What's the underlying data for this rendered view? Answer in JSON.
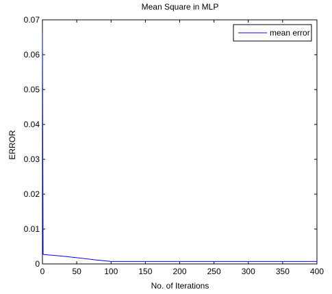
{
  "chart_data": {
    "type": "line",
    "title": "Mean Square in MLP",
    "xlabel": "No. of Iterations",
    "ylabel": "ERROR",
    "xlim": [
      0,
      400
    ],
    "ylim": [
      0,
      0.07
    ],
    "xticks": [
      0,
      50,
      100,
      150,
      200,
      250,
      300,
      350,
      400
    ],
    "xtick_labels": [
      "0",
      "50",
      "100",
      "150",
      "200",
      "250",
      "300",
      "350",
      "400"
    ],
    "yticks": [
      0,
      0.01,
      0.02,
      0.03,
      0.04,
      0.05,
      0.06,
      0.07
    ],
    "ytick_labels": [
      "0",
      "0.01",
      "0.02",
      "0.03",
      "0.04",
      "0.05",
      "0.06",
      "0.07"
    ],
    "grid": false,
    "legend_position": "top-right",
    "series": [
      {
        "name": "mean error",
        "color": "#0000ff",
        "x": [
          0,
          1,
          2,
          25,
          50,
          75,
          100,
          150,
          200,
          250,
          300,
          350,
          400
        ],
        "y": [
          0.066,
          0.0028,
          0.0027,
          0.0023,
          0.0018,
          0.0012,
          0.0007,
          0.0007,
          0.0007,
          0.0007,
          0.0007,
          0.0007,
          0.0007
        ]
      }
    ]
  }
}
